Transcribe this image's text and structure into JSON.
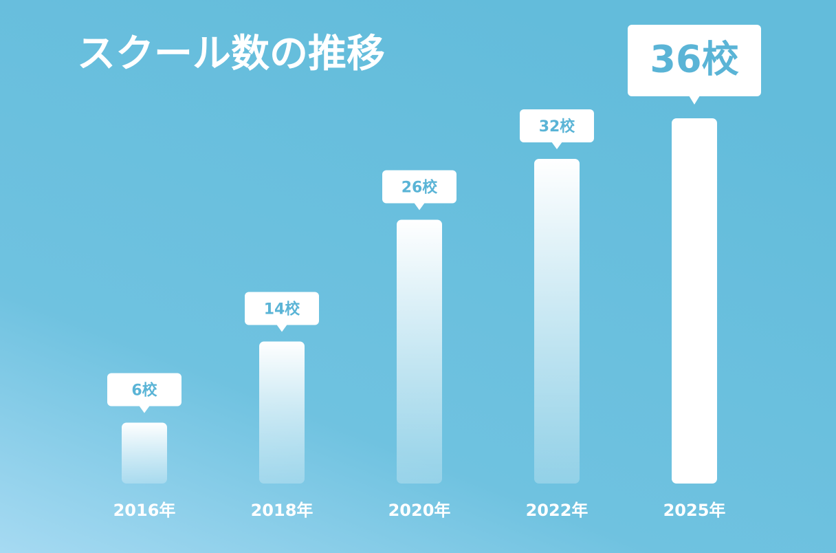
{
  "chart_data": {
    "type": "bar",
    "title": "スクール数の推移",
    "categories": [
      "2016年",
      "2018年",
      "2020年",
      "2022年",
      "2025年"
    ],
    "values": [
      6,
      14,
      26,
      32,
      36
    ],
    "value_labels": [
      "6校",
      "14校",
      "26校",
      "32校",
      "36校"
    ],
    "color": "#ffffff"
  }
}
